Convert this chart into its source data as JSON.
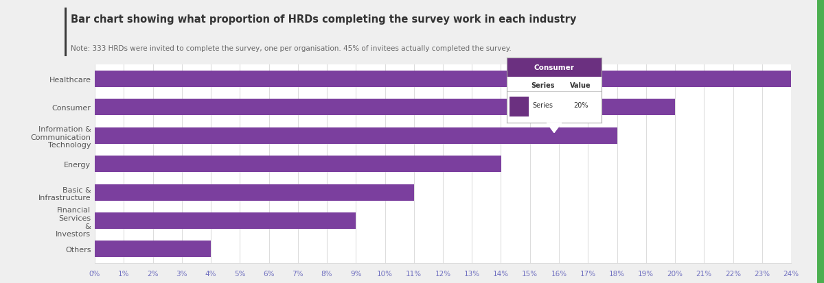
{
  "title": "Bar chart showing what proportion of HRDs completing the survey work in each industry",
  "note": "Note: 333 HRDs were invited to complete the survey, one per organisation. 45% of invitees actually completed the survey.",
  "categories": [
    "Healthcare",
    "Consumer",
    "Information &\nCommunication\nTechnology",
    "Energy",
    "Basic &\nInfrastructure",
    "Financial\nServices\n&\nInvestors",
    "Others"
  ],
  "values": [
    0.24,
    0.2,
    0.18,
    0.14,
    0.11,
    0.09,
    0.04
  ],
  "bar_color": "#7B3F9E",
  "background_color": "#EFEFEF",
  "chart_bg": "#FFFFFF",
  "title_color": "#333333",
  "note_color": "#666666",
  "grid_color": "#DDDDDD",
  "xlim_max": 0.24,
  "title_fontsize": 10.5,
  "note_fontsize": 7.5,
  "label_fontsize": 8,
  "tick_fontsize": 7.5,
  "tooltip_header": "Consumer",
  "tooltip_series": "Series",
  "tooltip_value": "20%",
  "accent_bar_color": "#3A3A3A",
  "green_accent": "#4CAF50",
  "tooltip_header_color": "#6B3080",
  "tick_color": "#7070C0"
}
